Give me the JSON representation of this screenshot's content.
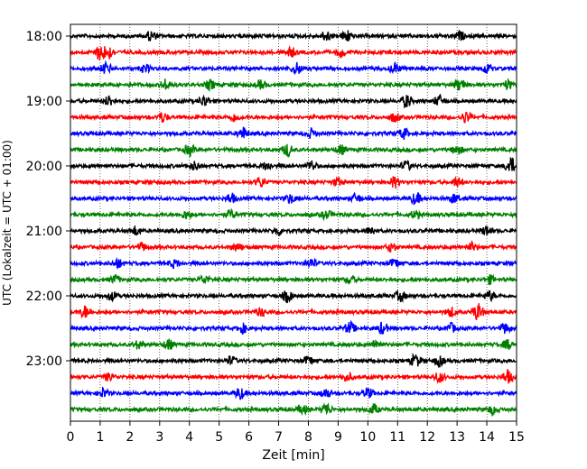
{
  "chart_data": {
    "type": "line",
    "xlabel": "Zeit  [min]",
    "ylabel": "UTC (Lokalzeit = UTC + 01:00)",
    "xlim": [
      0,
      15
    ],
    "x_ticks": [
      "0",
      "1",
      "2",
      "3",
      "4",
      "5",
      "6",
      "7",
      "8",
      "9",
      "10",
      "11",
      "12",
      "13",
      "14",
      "15"
    ],
    "y_ticks": [
      "18:00",
      "19:00",
      "20:00",
      "21:00",
      "22:00",
      "23:00"
    ],
    "grid_x": true,
    "grid_style": "dotted",
    "trace_interval_min": 15,
    "trace_colors": [
      "#000000",
      "#ff0000",
      "#0000ff",
      "#008000"
    ],
    "traces": [
      {
        "start": "18:00",
        "color": "#000000",
        "events": [
          [
            2.7,
            1.0
          ],
          [
            8.6,
            1.0
          ],
          [
            9.3,
            1.2
          ],
          [
            13.1,
            0.8
          ]
        ]
      },
      {
        "start": "18:15",
        "color": "#ff0000",
        "events": [
          [
            1.0,
            1.6
          ],
          [
            1.3,
            1.2
          ],
          [
            7.4,
            1.0
          ],
          [
            9.1,
            0.9
          ]
        ]
      },
      {
        "start": "18:30",
        "color": "#0000ff",
        "events": [
          [
            1.2,
            1.1
          ],
          [
            2.5,
            0.8
          ],
          [
            7.6,
            1.3
          ],
          [
            10.9,
            1.0
          ],
          [
            14.0,
            0.9
          ]
        ]
      },
      {
        "start": "18:45",
        "color": "#008000",
        "events": [
          [
            3.2,
            1.0
          ],
          [
            4.7,
            0.9
          ],
          [
            6.4,
            0.8
          ],
          [
            13.1,
            1.3
          ],
          [
            14.7,
            0.9
          ]
        ]
      },
      {
        "start": "19:00",
        "color": "#000000",
        "events": [
          [
            1.3,
            1.0
          ],
          [
            4.5,
            1.1
          ],
          [
            11.3,
            1.3
          ],
          [
            12.4,
            1.1
          ]
        ]
      },
      {
        "start": "19:15",
        "color": "#ff0000",
        "events": [
          [
            3.1,
            1.0
          ],
          [
            5.5,
            0.8
          ],
          [
            10.9,
            0.9
          ],
          [
            13.3,
            1.1
          ]
        ]
      },
      {
        "start": "19:30",
        "color": "#0000ff",
        "events": [
          [
            5.8,
            1.2
          ],
          [
            8.1,
            0.9
          ],
          [
            11.2,
            1.0
          ]
        ]
      },
      {
        "start": "19:45",
        "color": "#008000",
        "events": [
          [
            4.0,
            1.1
          ],
          [
            7.3,
            1.3
          ],
          [
            9.1,
            0.9
          ],
          [
            13.0,
            1.0
          ]
        ]
      },
      {
        "start": "20:00",
        "color": "#000000",
        "events": [
          [
            4.2,
            0.9
          ],
          [
            6.6,
            0.8
          ],
          [
            8.1,
            1.0
          ],
          [
            11.3,
            0.9
          ],
          [
            14.8,
            1.7
          ]
        ]
      },
      {
        "start": "20:15",
        "color": "#ff0000",
        "events": [
          [
            6.4,
            1.0
          ],
          [
            9.0,
            0.8
          ],
          [
            10.9,
            1.1
          ],
          [
            13.0,
            0.9
          ]
        ]
      },
      {
        "start": "20:30",
        "color": "#0000ff",
        "events": [
          [
            5.4,
            1.0
          ],
          [
            7.4,
            0.9
          ],
          [
            9.6,
            0.9
          ],
          [
            11.6,
            1.2
          ],
          [
            12.9,
            0.9
          ]
        ]
      },
      {
        "start": "20:45",
        "color": "#008000",
        "events": [
          [
            3.9,
            0.8
          ],
          [
            5.4,
            0.9
          ],
          [
            8.6,
            0.8
          ],
          [
            11.6,
            0.8
          ]
        ]
      },
      {
        "start": "21:00",
        "color": "#000000",
        "events": [
          [
            2.2,
            0.9
          ],
          [
            7.0,
            0.8
          ],
          [
            10.1,
            0.8
          ],
          [
            14.0,
            1.0
          ]
        ]
      },
      {
        "start": "21:15",
        "color": "#ff0000",
        "events": [
          [
            2.4,
            0.8
          ],
          [
            5.6,
            0.8
          ],
          [
            10.8,
            0.9
          ],
          [
            13.5,
            0.8
          ]
        ]
      },
      {
        "start": "21:30",
        "color": "#0000ff",
        "events": [
          [
            1.6,
            0.9
          ],
          [
            3.5,
            0.8
          ],
          [
            8.1,
            0.9
          ],
          [
            10.9,
            0.9
          ]
        ]
      },
      {
        "start": "21:45",
        "color": "#008000",
        "events": [
          [
            1.5,
            0.8
          ],
          [
            4.5,
            0.8
          ],
          [
            9.4,
            0.8
          ],
          [
            14.1,
            0.8
          ]
        ]
      },
      {
        "start": "22:00",
        "color": "#000000",
        "events": [
          [
            1.4,
            0.8
          ],
          [
            7.3,
            1.2
          ],
          [
            11.1,
            1.0
          ],
          [
            14.1,
            0.9
          ]
        ]
      },
      {
        "start": "22:15",
        "color": "#ff0000",
        "events": [
          [
            0.5,
            1.2
          ],
          [
            6.4,
            0.8
          ],
          [
            12.8,
            0.9
          ],
          [
            13.7,
            1.8
          ]
        ]
      },
      {
        "start": "22:30",
        "color": "#0000ff",
        "events": [
          [
            5.8,
            0.9
          ],
          [
            9.4,
            1.2
          ],
          [
            10.5,
            1.2
          ],
          [
            12.8,
            0.9
          ],
          [
            14.6,
            1.0
          ]
        ]
      },
      {
        "start": "22:45",
        "color": "#008000",
        "events": [
          [
            2.3,
            0.9
          ],
          [
            3.3,
            1.0
          ],
          [
            10.3,
            0.9
          ],
          [
            14.7,
            0.9
          ]
        ]
      },
      {
        "start": "23:00",
        "color": "#000000",
        "events": [
          [
            5.4,
            0.8
          ],
          [
            8.0,
            0.9
          ],
          [
            11.6,
            1.3
          ],
          [
            12.4,
            1.0
          ]
        ]
      },
      {
        "start": "23:15",
        "color": "#ff0000",
        "events": [
          [
            1.3,
            0.8
          ],
          [
            9.3,
            0.8
          ],
          [
            12.4,
            1.0
          ],
          [
            14.7,
            1.3
          ]
        ]
      },
      {
        "start": "23:30",
        "color": "#0000ff",
        "events": [
          [
            1.1,
            0.9
          ],
          [
            5.7,
            1.2
          ],
          [
            8.6,
            0.9
          ],
          [
            10.0,
            1.0
          ]
        ]
      },
      {
        "start": "23:45",
        "color": "#008000",
        "events": [
          [
            7.8,
            0.9
          ],
          [
            8.6,
            1.3
          ],
          [
            10.2,
            1.0
          ],
          [
            14.2,
            0.9
          ]
        ]
      }
    ]
  }
}
